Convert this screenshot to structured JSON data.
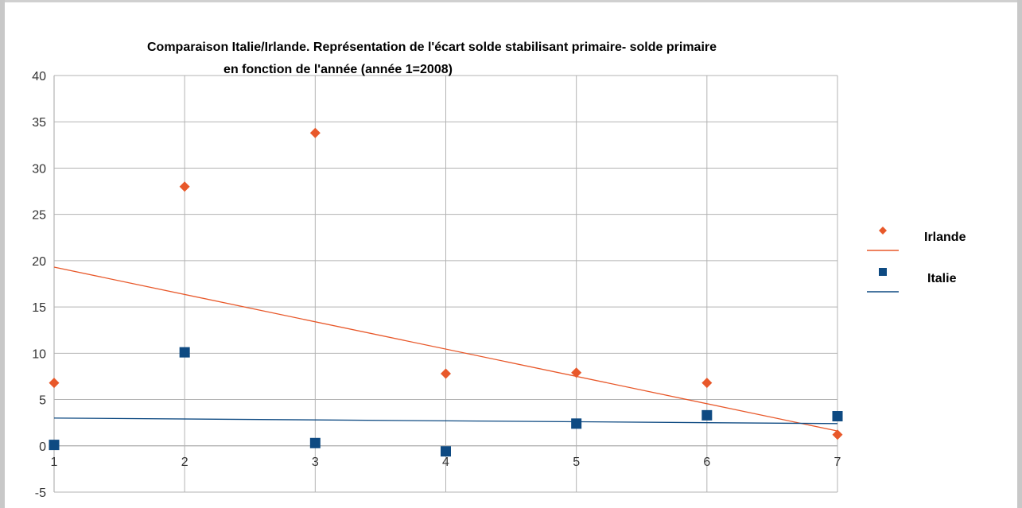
{
  "chart_data": {
    "type": "scatter",
    "title_line1": "Comparaison Italie/Irlande. Représentation de l'écart solde stabilisant primaire- solde primaire",
    "title_line2": "en fonction de l'année (année 1=2008)",
    "xlabel": "",
    "ylabel": "",
    "xlim": [
      1,
      7
    ],
    "ylim": [
      -5,
      40
    ],
    "x_ticks": [
      "1",
      "2",
      "3",
      "4",
      "5",
      "6",
      "7"
    ],
    "y_ticks": [
      "-5",
      "0",
      "5",
      "10",
      "15",
      "20",
      "25",
      "30",
      "35",
      "40"
    ],
    "grid": true,
    "legend_position": "right",
    "series": [
      {
        "name": "Irlande",
        "marker": "diamond",
        "color": "#e8582a",
        "points": [
          [
            1,
            6.8
          ],
          [
            2,
            28.0
          ],
          [
            3,
            33.8
          ],
          [
            4,
            7.8
          ],
          [
            5,
            7.9
          ],
          [
            6,
            6.8
          ],
          [
            7,
            1.2
          ]
        ],
        "trend": {
          "from": [
            1,
            19.3
          ],
          "to": [
            7,
            1.6
          ]
        }
      },
      {
        "name": "Italie",
        "marker": "square",
        "color": "#0e4a82",
        "points": [
          [
            1,
            0.1
          ],
          [
            2,
            10.1
          ],
          [
            3,
            0.3
          ],
          [
            4,
            -0.6
          ],
          [
            5,
            2.4
          ],
          [
            6,
            3.3
          ],
          [
            7,
            3.2
          ]
        ],
        "trend": {
          "from": [
            1,
            3.0
          ],
          "to": [
            7,
            2.4
          ]
        }
      }
    ]
  }
}
